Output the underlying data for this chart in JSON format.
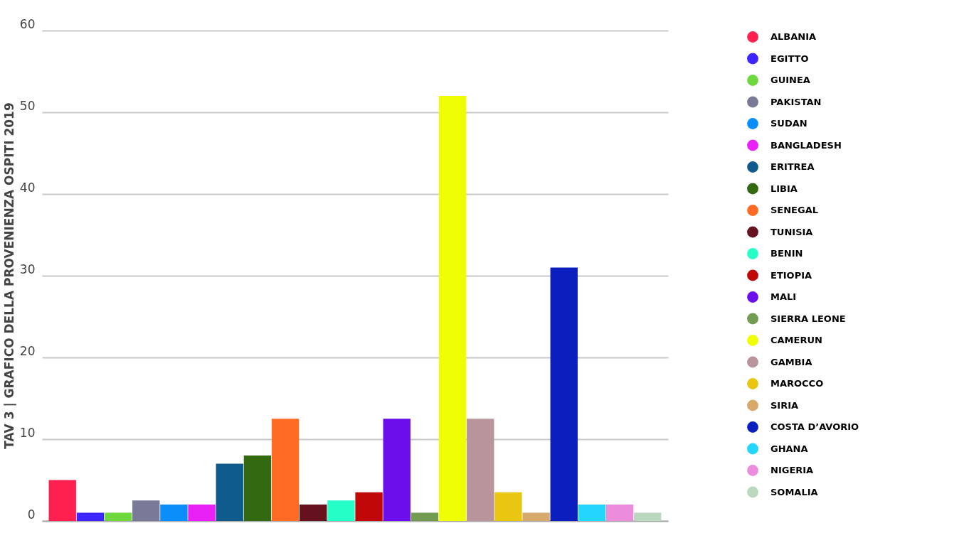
{
  "chart_data": {
    "type": "bar",
    "title": "TAV 3 | GRAFICO DELLA PROVENIENZA OSPITI 2019",
    "categories": [
      null
    ],
    "series": [
      {
        "name": "ALBANIA",
        "color": "#fe2150",
        "values": [
          5
        ]
      },
      {
        "name": "EGITTO",
        "color": "#3e24fe",
        "values": [
          1
        ]
      },
      {
        "name": "GUINEA",
        "color": "#6fd83e",
        "values": [
          1
        ]
      },
      {
        "name": "PAKISTAN",
        "color": "#7a7a98",
        "values": [
          2.5
        ]
      },
      {
        "name": "SUDAN",
        "color": "#0b8ef9",
        "values": [
          2
        ]
      },
      {
        "name": "BANGLADESH",
        "color": "#ea21f6",
        "values": [
          2
        ]
      },
      {
        "name": "ERITREA",
        "color": "#0f5c8c",
        "values": [
          7
        ]
      },
      {
        "name": "LIBIA",
        "color": "#336911",
        "values": [
          8
        ]
      },
      {
        "name": "SENEGAL",
        "color": "#ff6a25",
        "values": [
          12.5
        ]
      },
      {
        "name": "TUNISIA",
        "color": "#65111e",
        "values": [
          2
        ]
      },
      {
        "name": "BENIN",
        "color": "#26fec7",
        "values": [
          2.5
        ]
      },
      {
        "name": "ETIOPIA",
        "color": "#c10809",
        "values": [
          3.5
        ]
      },
      {
        "name": "MALI",
        "color": "#6c0deb",
        "values": [
          12.5
        ]
      },
      {
        "name": "SIERRA LEONE",
        "color": "#739c53",
        "values": [
          1
        ]
      },
      {
        "name": "CAMERUN",
        "color": "#f0fe04",
        "values": [
          52
        ]
      },
      {
        "name": "GAMBIA",
        "color": "#b9949d",
        "values": [
          12.5
        ]
      },
      {
        "name": "MAROCCO",
        "color": "#e9c611",
        "values": [
          3.5
        ]
      },
      {
        "name": "SIRIA",
        "color": "#d7aa6c",
        "values": [
          1
        ]
      },
      {
        "name": "COSTA D’AVORIO",
        "color": "#0a1fbe",
        "values": [
          31
        ]
      },
      {
        "name": "GHANA",
        "color": "#24d6fe",
        "values": [
          2
        ]
      },
      {
        "name": "NIGERIA",
        "color": "#eb8ddc",
        "values": [
          2
        ]
      },
      {
        "name": "SOMALIA",
        "color": "#bad8bd",
        "values": [
          1
        ]
      }
    ],
    "ylim": [
      0,
      60
    ],
    "yticks": [
      0,
      10,
      20,
      30,
      40,
      50,
      60
    ],
    "grid": "y",
    "legend": "right",
    "tick_labels": "y"
  }
}
